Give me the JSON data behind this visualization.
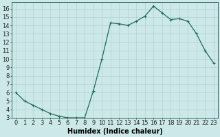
{
  "x": [
    0,
    1,
    2,
    3,
    4,
    5,
    6,
    7,
    8,
    9,
    10,
    11,
    12,
    13,
    14,
    15,
    16,
    17,
    18,
    19,
    20,
    21,
    22,
    23
  ],
  "y": [
    6.0,
    5.0,
    4.5,
    4.0,
    3.5,
    3.2,
    3.0,
    3.0,
    3.0,
    6.2,
    10.0,
    14.3,
    14.2,
    14.0,
    14.5,
    15.1,
    16.3,
    15.5,
    14.7,
    14.8,
    14.5,
    13.0,
    11.0,
    9.5
  ],
  "line_color": "#1a6b5a",
  "marker": "+",
  "marker_size": 3,
  "marker_lw": 0.8,
  "line_width": 0.9,
  "bg_color": "#cce8e8",
  "grid_color": "#aacccc",
  "xlabel": "Humidex (Indice chaleur)",
  "xlim": [
    -0.5,
    23.5
  ],
  "ylim": [
    3,
    16.8
  ],
  "yticks": [
    3,
    4,
    5,
    6,
    7,
    8,
    9,
    10,
    11,
    12,
    13,
    14,
    15,
    16
  ],
  "font_size": 6,
  "xlabel_fontsize": 7
}
